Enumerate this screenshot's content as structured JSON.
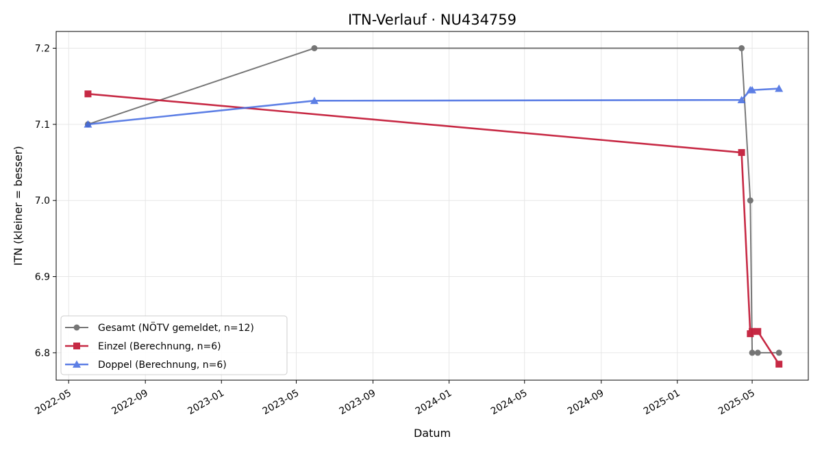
{
  "chart_data": {
    "type": "line",
    "title": "ITN-Verlauf · NU434759",
    "xlabel": "Datum",
    "ylabel": "ITN  (kleiner = besser)",
    "x_ticks": [
      "2022-05",
      "2022-09",
      "2023-01",
      "2023-05",
      "2023-09",
      "2024-01",
      "2024-05",
      "2024-09",
      "2025-01",
      "2025-05"
    ],
    "y_ticks": [
      6.8,
      6.9,
      7.0,
      7.1,
      7.2
    ],
    "xlim": [
      "2022-04-11",
      "2025-07-30"
    ],
    "ylim": [
      6.764,
      7.222
    ],
    "grid": true,
    "legend_position": "lower-left",
    "series": [
      {
        "name": "Gesamt (NÖTV gemeldet, n=12)",
        "color": "#555555",
        "marker": "circle",
        "points": [
          {
            "x": "2022-06-01",
            "y": 7.1
          },
          {
            "x": "2023-05-30",
            "y": 7.2
          },
          {
            "x": "2025-04-14",
            "y": 7.2
          },
          {
            "x": "2025-04-28",
            "y": 7.0
          },
          {
            "x": "2025-05-01",
            "y": 6.8
          },
          {
            "x": "2025-05-10",
            "y": 6.8
          },
          {
            "x": "2025-06-13",
            "y": 6.8
          }
        ]
      },
      {
        "name": "Einzel (Berechnung, n=6)",
        "color": "#c41e3a",
        "marker": "square",
        "points": [
          {
            "x": "2022-06-01",
            "y": 7.14
          },
          {
            "x": "2025-04-14",
            "y": 7.063
          },
          {
            "x": "2025-04-28",
            "y": 6.825
          },
          {
            "x": "2025-05-01",
            "y": 6.828
          },
          {
            "x": "2025-05-10",
            "y": 6.828
          },
          {
            "x": "2025-06-13",
            "y": 6.785
          }
        ]
      },
      {
        "name": "Doppel (Berechnung, n=6)",
        "color": "#4169e1",
        "marker": "triangle",
        "points": [
          {
            "x": "2022-06-01",
            "y": 7.1
          },
          {
            "x": "2023-05-30",
            "y": 7.131
          },
          {
            "x": "2025-04-14",
            "y": 7.132
          },
          {
            "x": "2025-04-28",
            "y": 7.145
          },
          {
            "x": "2025-05-01",
            "y": 7.145
          },
          {
            "x": "2025-06-13",
            "y": 7.147
          }
        ]
      }
    ]
  }
}
